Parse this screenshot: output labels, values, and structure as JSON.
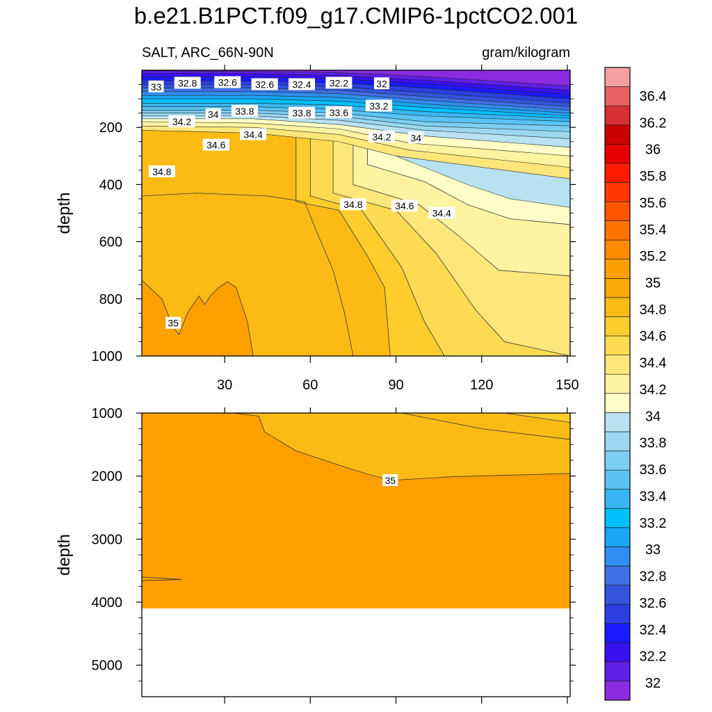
{
  "chart_data": {
    "type": "contour",
    "title": "b.e21.B1PCT.f09_g17.CMIP6-1pctCO2.001",
    "left_subtitle": "SALT, ARC_66N-90N",
    "right_subtitle": "gram/kilogram",
    "xlabel": "",
    "ylabel": "depth",
    "x_ticks": [
      "30",
      "60",
      "90",
      "120",
      "150"
    ],
    "top_panel": {
      "depth_range": [
        0,
        1000
      ],
      "y_ticks": [
        "200",
        "400",
        "600",
        "800",
        "1000"
      ],
      "contour_labels": [
        {
          "text": "33",
          "x": 6,
          "depth": 58
        },
        {
          "text": "32.8",
          "x": 17,
          "depth": 45
        },
        {
          "text": "32.6",
          "x": 31,
          "depth": 43
        },
        {
          "text": "32.6",
          "x": 44,
          "depth": 50
        },
        {
          "text": "32.4",
          "x": 57,
          "depth": 50
        },
        {
          "text": "32.2",
          "x": 70,
          "depth": 45
        },
        {
          "text": "32",
          "x": 85,
          "depth": 47
        },
        {
          "text": "33.2",
          "x": 84,
          "depth": 125
        },
        {
          "text": "34",
          "x": 26,
          "depth": 155
        },
        {
          "text": "33.8",
          "x": 37,
          "depth": 143
        },
        {
          "text": "33.8",
          "x": 57,
          "depth": 150
        },
        {
          "text": "33.6",
          "x": 70,
          "depth": 148
        },
        {
          "text": "34.2",
          "x": 15,
          "depth": 180
        },
        {
          "text": "34.4",
          "x": 40,
          "depth": 225
        },
        {
          "text": "34.2",
          "x": 85,
          "depth": 233
        },
        {
          "text": "34",
          "x": 97,
          "depth": 237
        },
        {
          "text": "34.6",
          "x": 27,
          "depth": 262
        },
        {
          "text": "34.8",
          "x": 8,
          "depth": 355
        },
        {
          "text": "34.8",
          "x": 75,
          "depth": 470
        },
        {
          "text": "34.6",
          "x": 93,
          "depth": 475
        },
        {
          "text": "34.4",
          "x": 106,
          "depth": 500
        },
        {
          "text": "35",
          "x": 12,
          "depth": 885
        }
      ]
    },
    "bottom_panel": {
      "depth_range": [
        1000,
        5500
      ],
      "y_ticks": [
        "1000",
        "2000",
        "3000",
        "4000",
        "5000"
      ],
      "contour_labels": [
        {
          "text": "35",
          "x": 88,
          "depth": 2070
        }
      ],
      "bottom_depth_with_data": 4100
    },
    "colorbar": {
      "levels": [
        "32",
        "32.2",
        "32.4",
        "32.6",
        "32.8",
        "33",
        "33.2",
        "33.4",
        "33.6",
        "33.8",
        "34",
        "34.2",
        "34.4",
        "34.6",
        "34.8",
        "35",
        "35.2",
        "35.4",
        "35.6",
        "35.8",
        "36",
        "36.2",
        "36.4"
      ],
      "colors": [
        "#8a2be2",
        "#5f1fe6",
        "#3a10f0",
        "#1a1aff",
        "#2b3fe0",
        "#3355dd",
        "#3f6fe6",
        "#2f8ff0",
        "#1aa6f5",
        "#00bfff",
        "#38b6f2",
        "#59c4f4",
        "#7ccff2",
        "#9bd8f0",
        "#b8e2f2",
        "#fefec6",
        "#fef3a0",
        "#fee77a",
        "#fedb52",
        "#fdcd2e",
        "#fcbb14",
        "#f9a806",
        "#ff9e00",
        "#ff8a00",
        "#ff7300",
        "#ff5500",
        "#ff3800",
        "#ff1a00",
        "#e60000",
        "#cc0000",
        "#d63030",
        "#e66060",
        "#f5a0a0"
      ]
    }
  }
}
